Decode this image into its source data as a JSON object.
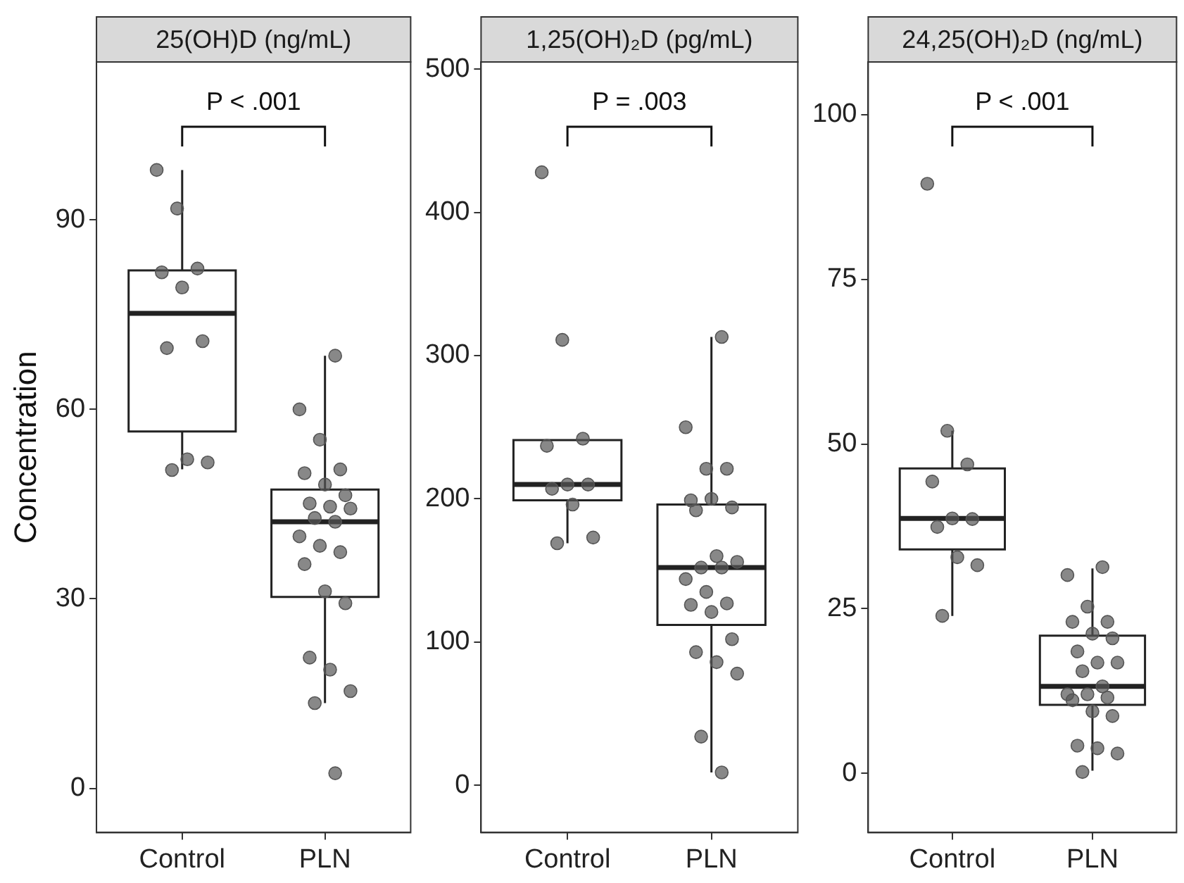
{
  "chart_data": [
    {
      "type": "box",
      "title": "25(OH)D (ng/mL)",
      "ylabel": "Concentration",
      "categories": [
        "Control",
        "PLN"
      ],
      "ylim": [
        -7,
        115
      ],
      "yticks": [
        0,
        30,
        60,
        90
      ],
      "grid": false,
      "annotations": [
        "P < .001"
      ],
      "boxes": [
        {
          "low": 50.5,
          "q1": 56.5,
          "median": 75.2,
          "q3": 82.0,
          "high": 97.9
        },
        {
          "low": 13.5,
          "q1": 30.3,
          "median": 42.2,
          "q3": 47.3,
          "high": 68.5
        }
      ],
      "series": [
        {
          "type": "scatter",
          "color": "#555555",
          "x": [
            "Control",
            "Control",
            "Control",
            "Control",
            "Control",
            "Control",
            "Control",
            "Control",
            "Control",
            "Control",
            "PLN",
            "PLN",
            "PLN",
            "PLN",
            "PLN",
            "PLN",
            "PLN",
            "PLN",
            "PLN",
            "PLN",
            "PLN",
            "PLN",
            "PLN",
            "PLN",
            "PLN",
            "PLN",
            "PLN",
            "PLN",
            "PLN",
            "PLN",
            "PLN",
            "PLN",
            "PLN"
          ],
          "values": [
            97.9,
            91.8,
            82.3,
            81.7,
            79.3,
            70.8,
            69.7,
            52.1,
            51.6,
            50.4,
            68.5,
            60.0,
            55.2,
            50.5,
            49.9,
            48.1,
            46.4,
            45.1,
            44.6,
            44.3,
            42.8,
            42.2,
            39.9,
            38.4,
            37.4,
            35.5,
            31.2,
            29.3,
            20.7,
            18.8,
            15.4,
            13.5,
            2.4
          ]
        }
      ]
    },
    {
      "type": "box",
      "title": "1,25(OH)₂D (pg/mL)",
      "categories": [
        "Control",
        "PLN"
      ],
      "ylim": [
        -33,
        505
      ],
      "yticks": [
        0,
        100,
        200,
        300,
        400,
        500
      ],
      "grid": false,
      "annotations": [
        "P = .003"
      ],
      "boxes": [
        {
          "low": 169,
          "q1": 199,
          "median": 210,
          "q3": 241,
          "high": 241
        },
        {
          "low": 9,
          "q1": 112,
          "median": 152,
          "q3": 196,
          "high": 313
        }
      ],
      "series": [
        {
          "type": "scatter",
          "color": "#555555",
          "x": [
            "Control",
            "Control",
            "Control",
            "Control",
            "Control",
            "Control",
            "Control",
            "Control",
            "Control",
            "Control",
            "PLN",
            "PLN",
            "PLN",
            "PLN",
            "PLN",
            "PLN",
            "PLN",
            "PLN",
            "PLN",
            "PLN",
            "PLN",
            "PLN",
            "PLN",
            "PLN",
            "PLN",
            "PLN",
            "PLN",
            "PLN",
            "PLN",
            "PLN",
            "PLN",
            "PLN",
            "PLN"
          ],
          "values": [
            428,
            311,
            242,
            237,
            210,
            210,
            207,
            196,
            173,
            169,
            313,
            250,
            221,
            221,
            199,
            200,
            194,
            192,
            160,
            156,
            152,
            152,
            144,
            135,
            127,
            126,
            121,
            102,
            93,
            86,
            78,
            34,
            9
          ]
        }
      ]
    },
    {
      "type": "box",
      "title": "24,25(OH)₂D (ng/mL)",
      "categories": [
        "Control",
        "PLN"
      ],
      "ylim": [
        -9,
        108
      ],
      "yticks": [
        0,
        25,
        50,
        75,
        100
      ],
      "grid": false,
      "annotations": [
        "P < .001"
      ],
      "boxes": [
        {
          "low": 23.9,
          "q1": 34.0,
          "median": 38.7,
          "q3": 46.3,
          "high": 52.0
        },
        {
          "low": 0.4,
          "q1": 10.4,
          "median": 13.2,
          "q3": 20.9,
          "high": 31.1
        }
      ],
      "series": [
        {
          "type": "scatter",
          "color": "#555555",
          "x": [
            "Control",
            "Control",
            "Control",
            "Control",
            "Control",
            "Control",
            "Control",
            "Control",
            "Control",
            "Control",
            "PLN",
            "PLN",
            "PLN",
            "PLN",
            "PLN",
            "PLN",
            "PLN",
            "PLN",
            "PLN",
            "PLN",
            "PLN",
            "PLN",
            "PLN",
            "PLN",
            "PLN",
            "PLN",
            "PLN",
            "PLN",
            "PLN",
            "PLN",
            "PLN",
            "PLN"
          ],
          "values": [
            89.5,
            52.0,
            46.9,
            44.3,
            38.7,
            38.6,
            37.4,
            32.8,
            31.6,
            23.9,
            31.3,
            30.1,
            25.3,
            23.0,
            23.0,
            21.2,
            20.5,
            18.5,
            16.8,
            16.8,
            15.5,
            13.2,
            12.0,
            12.0,
            11.5,
            11.1,
            9.4,
            8.7,
            4.2,
            3.8,
            3.0,
            0.2
          ]
        }
      ]
    }
  ]
}
